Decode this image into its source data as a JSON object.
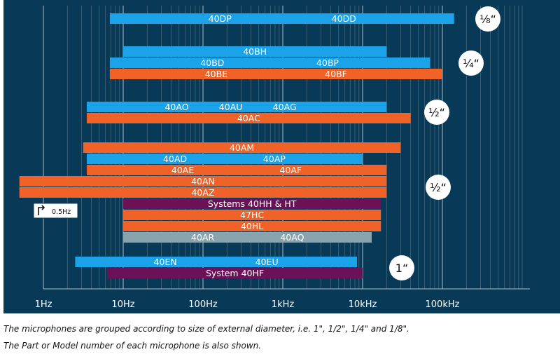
{
  "chart_data": {
    "type": "bar",
    "orientation": "horizontal",
    "x_scale": "log",
    "xlim": [
      1,
      1000000
    ],
    "x_ticks": [
      "1Hz",
      "10Hz",
      "100Hz",
      "1kHz",
      "10kHz",
      "100kHz"
    ],
    "grid": true,
    "colors": {
      "background": "#083a57",
      "blue": "#1aa3e8",
      "orange": "#f06227",
      "purple": "#6b1158",
      "grey": "#8aa4ad",
      "grid_major": "#a9c0cc",
      "grid_minor": "#45677d"
    },
    "bars": [
      {
        "labels": [
          "40DP",
          "40DD"
        ],
        "x_range": [
          6.8,
          140000
        ],
        "color": "blue",
        "row": 0
      },
      {
        "labels": [
          "40BH"
        ],
        "x_range": [
          10,
          20000
        ],
        "color": "blue",
        "row": 1
      },
      {
        "labels": [
          "40BD",
          "40BP"
        ],
        "x_range": [
          6.8,
          70000
        ],
        "color": "blue",
        "row": 2
      },
      {
        "labels": [
          "40BE",
          "40BF"
        ],
        "x_range": [
          6.8,
          100000
        ],
        "color": "orange",
        "row": 3
      },
      {
        "labels": [
          "40AO",
          "40AU",
          "40AG"
        ],
        "x_range": [
          3.5,
          20000
        ],
        "color": "blue",
        "row": 4
      },
      {
        "labels": [
          "40AC"
        ],
        "x_range": [
          3.5,
          40000
        ],
        "color": "orange",
        "row": 5
      },
      {
        "labels": [
          "40AM"
        ],
        "x_range": [
          3.15,
          30000
        ],
        "color": "orange",
        "row": 6
      },
      {
        "labels": [
          "40AD",
          "40AP"
        ],
        "x_range": [
          3.5,
          10000
        ],
        "color": "blue",
        "row": 7
      },
      {
        "labels": [
          "40AE",
          "40AF"
        ],
        "x_range": [
          3.5,
          20000
        ],
        "color": "orange",
        "row": 8
      },
      {
        "labels": [
          "40AN"
        ],
        "x_range": [
          0.5,
          20000
        ],
        "color": "orange",
        "row": 9
      },
      {
        "labels": [
          "40AZ"
        ],
        "x_range": [
          0.5,
          20000
        ],
        "color": "orange",
        "row": 10
      },
      {
        "labels": [
          "Systems 40HH & HT"
        ],
        "x_range": [
          10,
          17000
        ],
        "color": "purple",
        "row": 11
      },
      {
        "labels": [
          "47HC"
        ],
        "x_range": [
          10,
          17000
        ],
        "color": "orange",
        "row": 12
      },
      {
        "labels": [
          "40HL"
        ],
        "x_range": [
          10,
          17000
        ],
        "color": "orange",
        "row": 13
      },
      {
        "labels": [
          "40AR",
          "40AQ"
        ],
        "x_range": [
          10,
          13000
        ],
        "color": "grey",
        "row": 14
      },
      {
        "labels": [
          "40EN",
          "40EU"
        ],
        "x_range": [
          2.5,
          8500
        ],
        "color": "blue",
        "row": 15
      },
      {
        "labels": [
          "System 40HF"
        ],
        "x_range": [
          6.3,
          10000
        ],
        "color": "purple",
        "row": 16
      }
    ],
    "group_badges": [
      {
        "label": "⅛“",
        "group": "1/8"
      },
      {
        "label": "¼“",
        "group": "1/4"
      },
      {
        "label": "½“",
        "group": "1/2 a"
      },
      {
        "label": "½“",
        "group": "1/2 b"
      },
      {
        "label": "1“",
        "group": "1"
      }
    ],
    "annotation": {
      "label": "0.5Hz"
    }
  },
  "captions": [
    "The microphones are grouped according to size of external diameter, i.e. 1\", 1/2\", 1/4\" and 1/8\".",
    "The Part or Model number of each microphone is also shown."
  ]
}
